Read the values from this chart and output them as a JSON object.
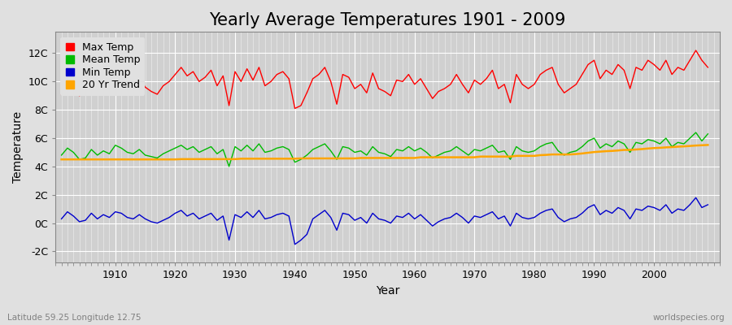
{
  "title": "Yearly Average Temperatures 1901 - 2009",
  "xlabel": "Year",
  "ylabel": "Temperature",
  "lat_lon_label": "Latitude 59.25 Longitude 12.75",
  "source_label": "worldspecies.org",
  "years": [
    1901,
    1902,
    1903,
    1904,
    1905,
    1906,
    1907,
    1908,
    1909,
    1910,
    1911,
    1912,
    1913,
    1914,
    1915,
    1916,
    1917,
    1918,
    1919,
    1920,
    1921,
    1922,
    1923,
    1924,
    1925,
    1926,
    1927,
    1928,
    1929,
    1930,
    1931,
    1932,
    1933,
    1934,
    1935,
    1936,
    1937,
    1938,
    1939,
    1940,
    1941,
    1942,
    1943,
    1944,
    1945,
    1946,
    1947,
    1948,
    1949,
    1950,
    1951,
    1952,
    1953,
    1954,
    1955,
    1956,
    1957,
    1958,
    1959,
    1960,
    1961,
    1962,
    1963,
    1964,
    1965,
    1966,
    1967,
    1968,
    1969,
    1970,
    1971,
    1972,
    1973,
    1974,
    1975,
    1976,
    1977,
    1978,
    1979,
    1980,
    1981,
    1982,
    1983,
    1984,
    1985,
    1986,
    1987,
    1988,
    1989,
    1990,
    1991,
    1992,
    1993,
    1994,
    1995,
    1996,
    1997,
    1998,
    1999,
    2000,
    2001,
    2002,
    2003,
    2004,
    2005,
    2006,
    2007,
    2008,
    2009
  ],
  "max_temp": [
    9.1,
    10.2,
    9.5,
    9.0,
    9.2,
    9.8,
    9.3,
    9.7,
    9.4,
    10.5,
    10.8,
    10.2,
    9.8,
    10.3,
    9.6,
    9.3,
    9.1,
    9.7,
    10.0,
    10.5,
    11.0,
    10.4,
    10.7,
    10.0,
    10.3,
    10.8,
    9.7,
    10.4,
    8.3,
    10.7,
    10.0,
    10.9,
    10.1,
    11.0,
    9.7,
    10.0,
    10.5,
    10.7,
    10.2,
    8.1,
    8.3,
    9.2,
    10.2,
    10.5,
    11.0,
    10.0,
    8.4,
    10.5,
    10.3,
    9.5,
    9.8,
    9.2,
    10.6,
    9.5,
    9.3,
    9.0,
    10.1,
    10.0,
    10.5,
    9.8,
    10.2,
    9.5,
    8.8,
    9.3,
    9.5,
    9.8,
    10.5,
    9.8,
    9.2,
    10.1,
    9.8,
    10.2,
    10.8,
    9.5,
    9.8,
    8.5,
    10.5,
    9.8,
    9.5,
    9.8,
    10.5,
    10.8,
    11.0,
    9.8,
    9.2,
    9.5,
    9.8,
    10.5,
    11.2,
    11.5,
    10.2,
    10.8,
    10.5,
    11.2,
    10.8,
    9.5,
    11.0,
    10.8,
    11.5,
    11.2,
    10.8,
    11.5,
    10.5,
    11.0,
    10.8,
    11.5,
    12.2,
    11.5,
    11.0
  ],
  "mean_temp": [
    4.8,
    5.3,
    5.0,
    4.5,
    4.6,
    5.2,
    4.8,
    5.1,
    4.9,
    5.5,
    5.3,
    5.0,
    4.9,
    5.2,
    4.8,
    4.7,
    4.6,
    4.9,
    5.1,
    5.3,
    5.5,
    5.2,
    5.4,
    5.0,
    5.2,
    5.4,
    4.9,
    5.2,
    4.0,
    5.4,
    5.1,
    5.5,
    5.1,
    5.6,
    5.0,
    5.1,
    5.3,
    5.4,
    5.2,
    4.3,
    4.5,
    4.8,
    5.2,
    5.4,
    5.6,
    5.1,
    4.5,
    5.4,
    5.3,
    5.0,
    5.1,
    4.8,
    5.4,
    5.0,
    4.9,
    4.7,
    5.2,
    5.1,
    5.4,
    5.1,
    5.3,
    5.0,
    4.6,
    4.8,
    5.0,
    5.1,
    5.4,
    5.1,
    4.8,
    5.2,
    5.1,
    5.3,
    5.5,
    5.0,
    5.1,
    4.5,
    5.4,
    5.1,
    5.0,
    5.1,
    5.4,
    5.6,
    5.7,
    5.1,
    4.8,
    5.0,
    5.1,
    5.4,
    5.8,
    6.0,
    5.3,
    5.6,
    5.4,
    5.8,
    5.6,
    5.0,
    5.7,
    5.6,
    5.9,
    5.8,
    5.6,
    6.0,
    5.4,
    5.7,
    5.6,
    6.0,
    6.4,
    5.8,
    6.3
  ],
  "min_temp": [
    0.3,
    0.8,
    0.5,
    0.1,
    0.2,
    0.7,
    0.3,
    0.6,
    0.4,
    0.8,
    0.7,
    0.4,
    0.3,
    0.6,
    0.3,
    0.1,
    0.0,
    0.2,
    0.4,
    0.7,
    0.9,
    0.5,
    0.7,
    0.3,
    0.5,
    0.7,
    0.2,
    0.5,
    -1.2,
    0.6,
    0.4,
    0.8,
    0.4,
    0.9,
    0.3,
    0.4,
    0.6,
    0.7,
    0.5,
    -1.5,
    -1.2,
    -0.8,
    0.3,
    0.6,
    0.9,
    0.4,
    -0.5,
    0.7,
    0.6,
    0.2,
    0.4,
    0.0,
    0.7,
    0.3,
    0.2,
    0.0,
    0.5,
    0.4,
    0.7,
    0.3,
    0.6,
    0.2,
    -0.2,
    0.1,
    0.3,
    0.4,
    0.7,
    0.4,
    0.0,
    0.5,
    0.4,
    0.6,
    0.8,
    0.3,
    0.5,
    -0.2,
    0.7,
    0.4,
    0.3,
    0.4,
    0.7,
    0.9,
    1.0,
    0.4,
    0.1,
    0.3,
    0.4,
    0.7,
    1.1,
    1.3,
    0.6,
    0.9,
    0.7,
    1.1,
    0.9,
    0.3,
    1.0,
    0.9,
    1.2,
    1.1,
    0.9,
    1.3,
    0.7,
    1.0,
    0.9,
    1.3,
    1.8,
    1.1,
    1.3
  ],
  "trend_temp": [
    4.5,
    4.5,
    4.5,
    4.5,
    4.5,
    4.5,
    4.5,
    4.5,
    4.5,
    4.5,
    4.5,
    4.5,
    4.5,
    4.5,
    4.5,
    4.5,
    4.5,
    4.5,
    4.5,
    4.5,
    4.52,
    4.52,
    4.52,
    4.52,
    4.52,
    4.52,
    4.52,
    4.52,
    4.52,
    4.52,
    4.55,
    4.55,
    4.55,
    4.55,
    4.55,
    4.55,
    4.55,
    4.55,
    4.55,
    4.55,
    4.57,
    4.57,
    4.57,
    4.57,
    4.57,
    4.57,
    4.57,
    4.57,
    4.57,
    4.57,
    4.6,
    4.6,
    4.6,
    4.6,
    4.6,
    4.6,
    4.6,
    4.6,
    4.6,
    4.6,
    4.65,
    4.65,
    4.65,
    4.65,
    4.65,
    4.65,
    4.65,
    4.65,
    4.65,
    4.65,
    4.7,
    4.7,
    4.7,
    4.7,
    4.7,
    4.7,
    4.75,
    4.75,
    4.75,
    4.75,
    4.8,
    4.82,
    4.85,
    4.85,
    4.85,
    4.85,
    4.88,
    4.92,
    4.97,
    5.02,
    5.05,
    5.08,
    5.1,
    5.13,
    5.17,
    5.17,
    5.2,
    5.23,
    5.27,
    5.3,
    5.32,
    5.35,
    5.37,
    5.4,
    5.42,
    5.45,
    5.48,
    5.5,
    5.52
  ],
  "max_color": "#ff0000",
  "mean_color": "#00bb00",
  "min_color": "#0000cc",
  "trend_color": "#ffa500",
  "fig_bg_color": "#e0e0e0",
  "plot_bg_color": "#d0d0d0",
  "grid_color": "#ffffff",
  "ylim": [
    -2.8,
    13.5
  ],
  "yticks": [
    -2,
    0,
    2,
    4,
    6,
    8,
    10,
    12
  ],
  "ytick_labels": [
    "-2C",
    "0C",
    "2C",
    "4C",
    "6C",
    "8C",
    "10C",
    "12C"
  ],
  "xlim": [
    1900,
    2011
  ],
  "xticks": [
    1910,
    1920,
    1930,
    1940,
    1950,
    1960,
    1970,
    1980,
    1990,
    2000
  ],
  "title_fontsize": 15,
  "axis_label_fontsize": 10,
  "tick_fontsize": 9,
  "legend_fontsize": 9,
  "minor_xtick_step": 1
}
